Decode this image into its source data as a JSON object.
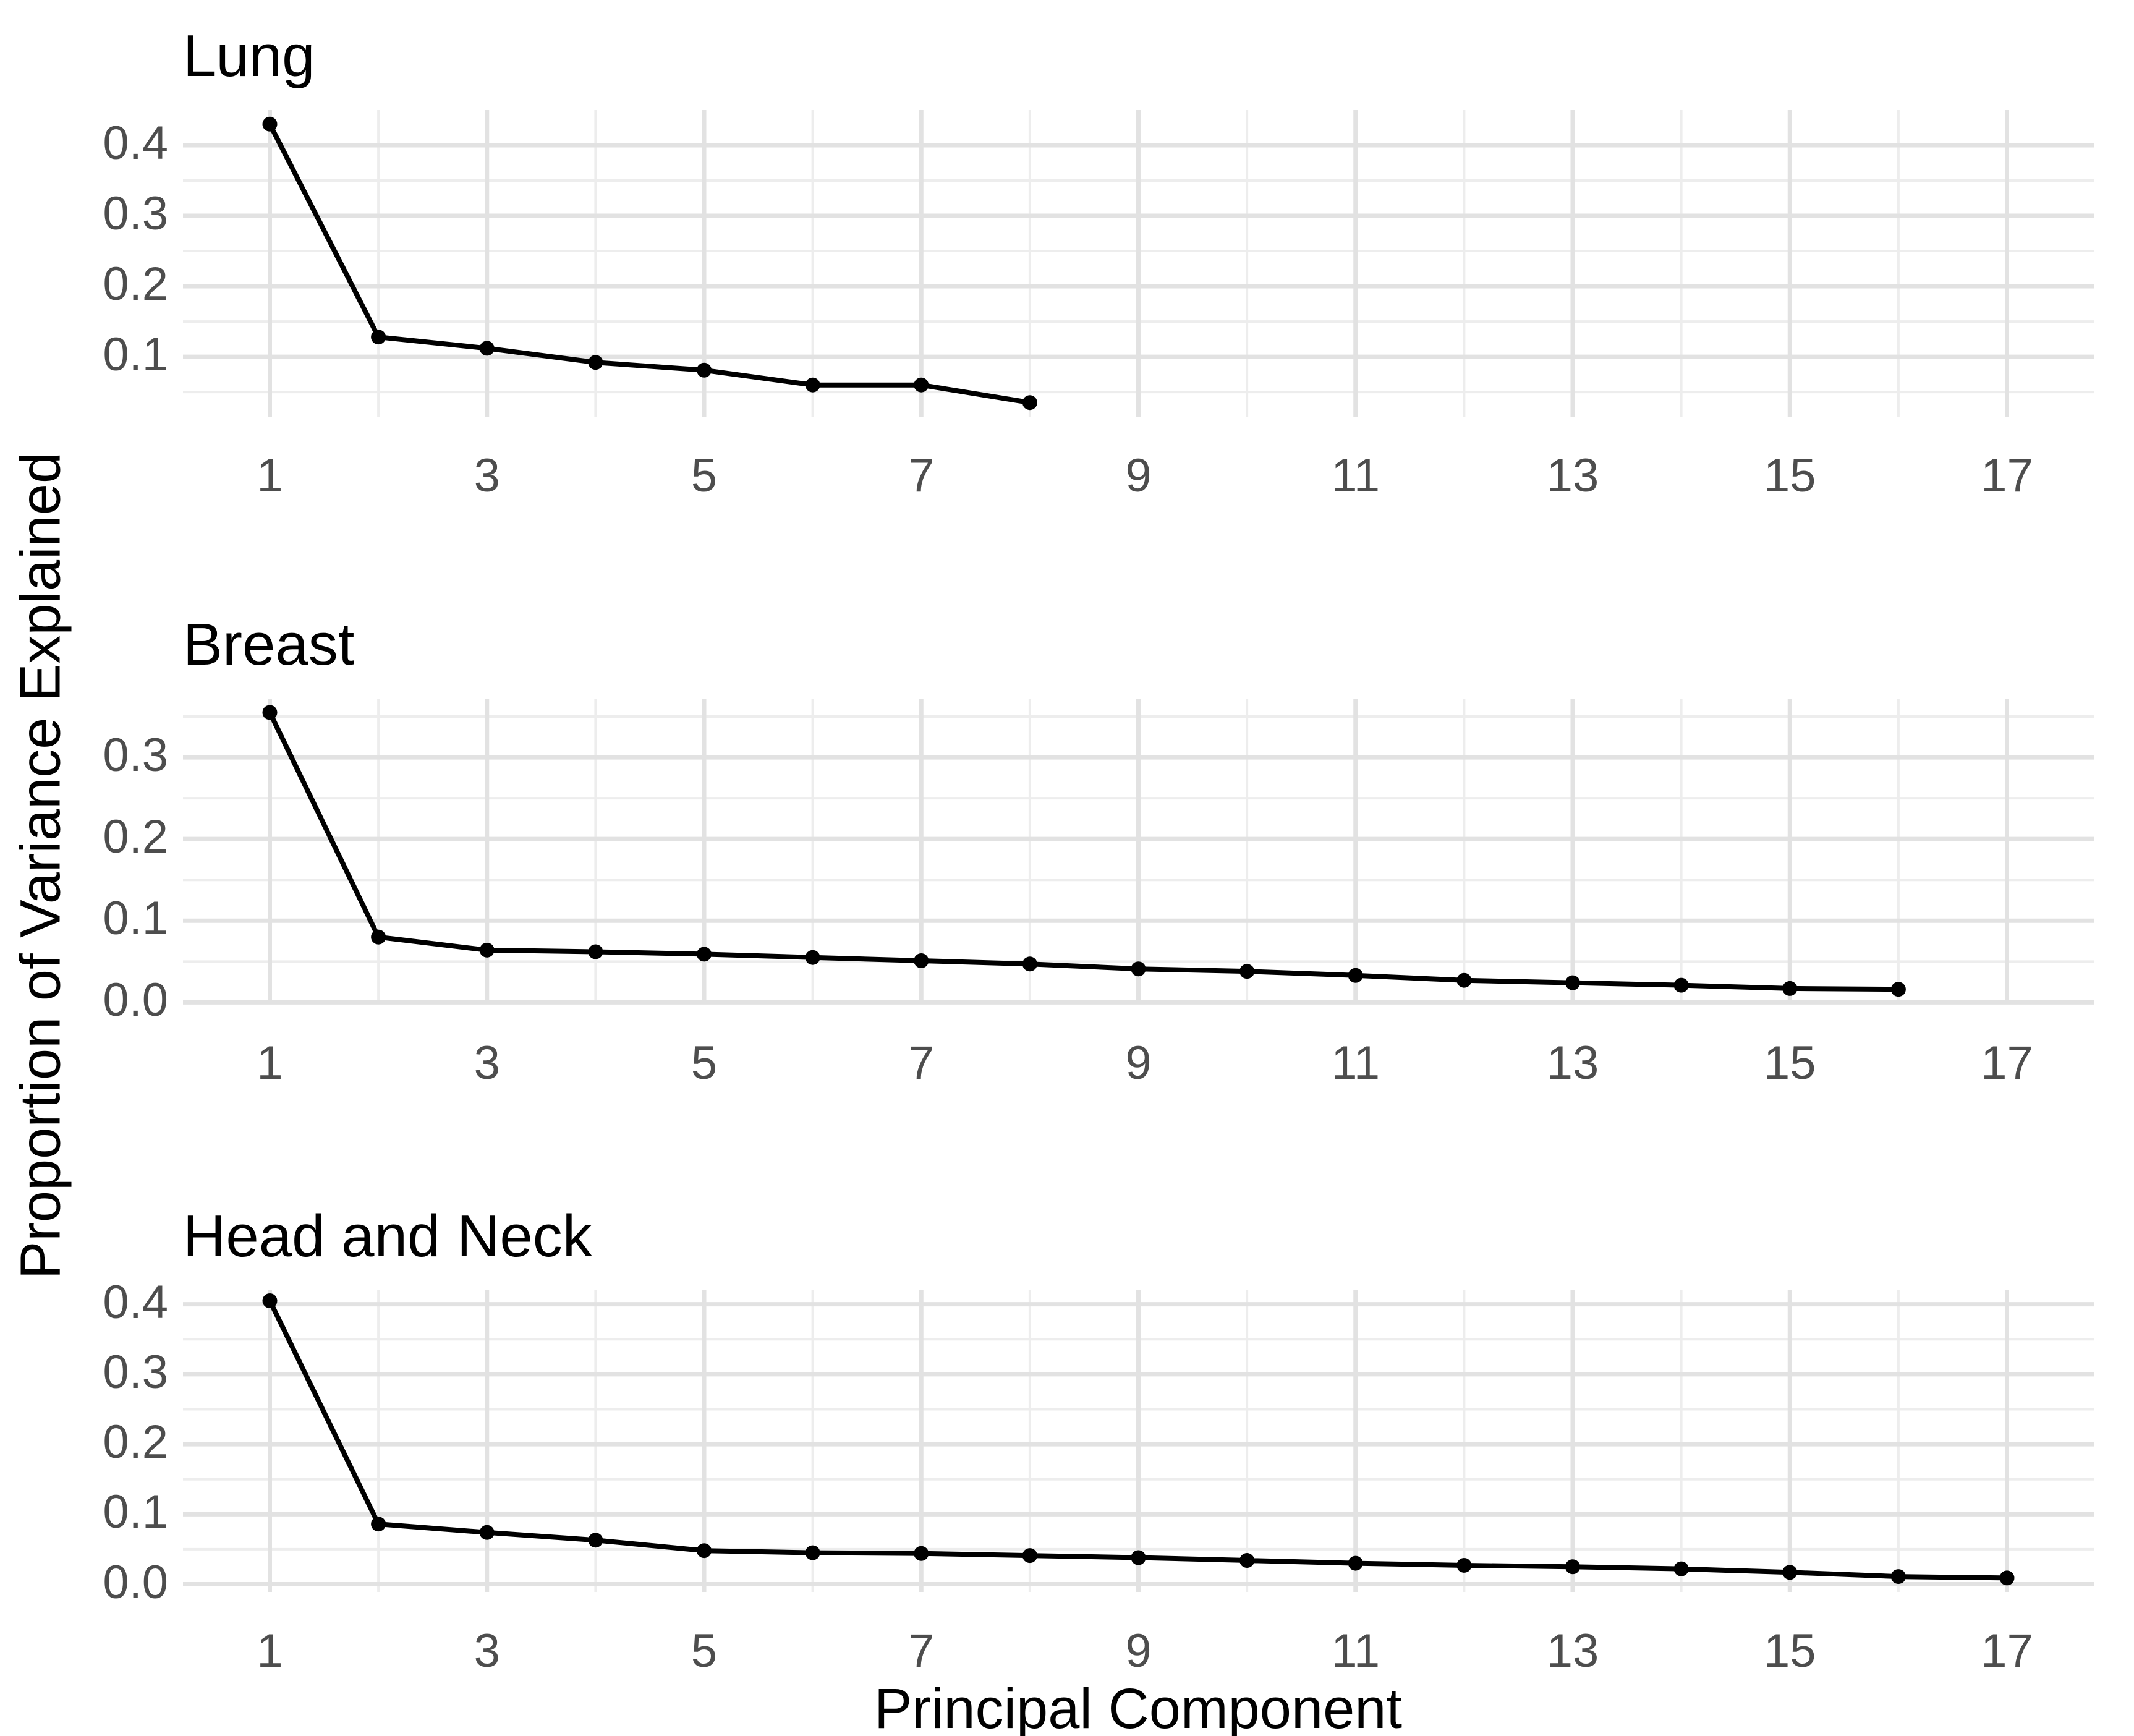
{
  "figure": {
    "xlabel": "Principal Component",
    "ylabel": "Proportion of Variance Explained"
  },
  "colors": {
    "background": "#ffffff",
    "series_line": "#000000",
    "point_fill": "#000000",
    "grid_major": "#e2e2e2",
    "grid_minor": "#ededed",
    "tick_text": "#4d4d4d",
    "title_text": "#000000"
  },
  "x_axis": {
    "range": [
      0.2,
      17.8
    ],
    "tick_values": [
      1,
      3,
      5,
      7,
      9,
      11,
      13,
      15,
      17
    ],
    "tick_labels": [
      "1",
      "3",
      "5",
      "7",
      "9",
      "11",
      "13",
      "15",
      "17"
    ],
    "minor_values": [
      2,
      4,
      6,
      8,
      10,
      12,
      14,
      16
    ]
  },
  "panels": [
    {
      "title": "Lung",
      "ylim": [
        0.015,
        0.45
      ],
      "y_tick_values": [
        0.1,
        0.2,
        0.3,
        0.4
      ],
      "y_tick_labels": [
        "0.1",
        "0.2",
        "0.3",
        "0.4"
      ],
      "y_minor_values": [
        0.05,
        0.15,
        0.25,
        0.35
      ]
    },
    {
      "title": "Breast",
      "ylim": [
        -0.002,
        0.372
      ],
      "y_tick_values": [
        0.0,
        0.1,
        0.2,
        0.3
      ],
      "y_tick_labels": [
        "0.0",
        "0.1",
        "0.2",
        "0.3"
      ],
      "y_minor_values": [
        0.05,
        0.15,
        0.25,
        0.35
      ]
    },
    {
      "title": "Head and Neck",
      "ylim": [
        -0.011,
        0.42
      ],
      "y_tick_values": [
        0.0,
        0.1,
        0.2,
        0.3,
        0.4
      ],
      "y_tick_labels": [
        "0.0",
        "0.1",
        "0.2",
        "0.3",
        "0.4"
      ],
      "y_minor_values": [
        0.05,
        0.15,
        0.25,
        0.35
      ]
    }
  ],
  "chart_data": [
    {
      "type": "line",
      "title": "Lung",
      "xlabel": "Principal Component",
      "ylabel": "Proportion of Variance Explained",
      "x": [
        1,
        2,
        3,
        4,
        5,
        6,
        7,
        8
      ],
      "values": [
        0.43,
        0.128,
        0.112,
        0.092,
        0.081,
        0.06,
        0.06,
        0.035
      ],
      "xlim": [
        0.2,
        17.8
      ],
      "ylim": [
        0.015,
        0.45
      ],
      "grid": true,
      "legend": false,
      "marker": "point"
    },
    {
      "type": "line",
      "title": "Breast",
      "xlabel": "Principal Component",
      "ylabel": "Proportion of Variance Explained",
      "x": [
        1,
        2,
        3,
        4,
        5,
        6,
        7,
        8,
        9,
        10,
        11,
        12,
        13,
        14,
        15,
        16
      ],
      "values": [
        0.355,
        0.08,
        0.064,
        0.062,
        0.059,
        0.055,
        0.051,
        0.047,
        0.041,
        0.038,
        0.033,
        0.027,
        0.024,
        0.021,
        0.017,
        0.016
      ],
      "xlim": [
        0.2,
        17.8
      ],
      "ylim": [
        -0.002,
        0.372
      ],
      "grid": true,
      "legend": false,
      "marker": "point"
    },
    {
      "type": "line",
      "title": "Head and Neck",
      "xlabel": "Principal Component",
      "ylabel": "Proportion of Variance Explained",
      "x": [
        1,
        2,
        3,
        4,
        5,
        6,
        7,
        8,
        9,
        10,
        11,
        12,
        13,
        14,
        15,
        16,
        17
      ],
      "values": [
        0.405,
        0.086,
        0.074,
        0.063,
        0.048,
        0.045,
        0.044,
        0.041,
        0.038,
        0.034,
        0.03,
        0.027,
        0.025,
        0.022,
        0.017,
        0.011,
        0.009
      ],
      "xlim": [
        0.2,
        17.8
      ],
      "ylim": [
        -0.011,
        0.42
      ],
      "grid": true,
      "legend": false,
      "marker": "point"
    }
  ]
}
